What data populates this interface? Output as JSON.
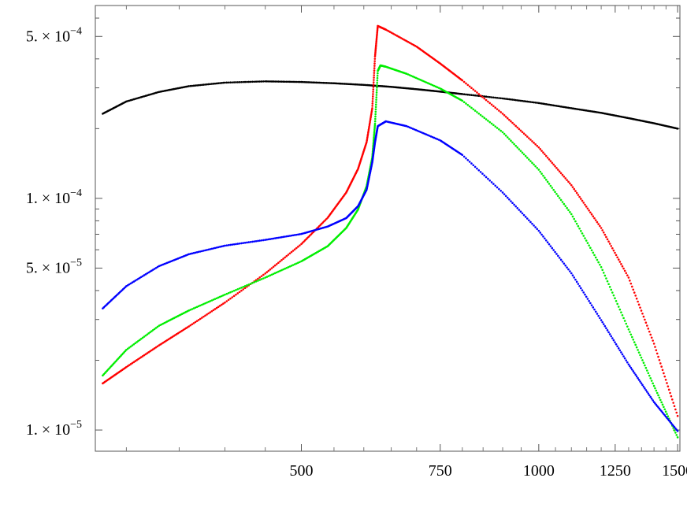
{
  "chart_data": {
    "type": "scatter",
    "title": "",
    "xlabel": "",
    "ylabel": "",
    "xscale": "log",
    "yscale": "log",
    "xlim": [
      274,
      1510
    ],
    "ylim": [
      8.1e-06,
      0.00068
    ],
    "grid": false,
    "x_ticks": [
      {
        "value": 500,
        "label": "500"
      },
      {
        "value": 750,
        "label": "750"
      },
      {
        "value": 1000,
        "label": "1000"
      },
      {
        "value": 1250,
        "label": "1250"
      },
      {
        "value": 1500,
        "label": "1500"
      }
    ],
    "y_ticks": [
      {
        "value": 1e-05,
        "mantissa": "1.",
        "base": "10",
        "exp": "−5"
      },
      {
        "value": 5e-05,
        "mantissa": "5.",
        "base": "10",
        "exp": "−5"
      },
      {
        "value": 0.0001,
        "mantissa": "1.",
        "base": "10",
        "exp": "−4"
      },
      {
        "value": 0.0005,
        "mantissa": "5.",
        "base": "10",
        "exp": "−4"
      }
    ],
    "series": [
      {
        "color": "#000000",
        "points": [
          [
            280,
            0.000232
          ],
          [
            300,
            0.000262
          ],
          [
            330,
            0.000288
          ],
          [
            360,
            0.000305
          ],
          [
            400,
            0.000316
          ],
          [
            450,
            0.00032
          ],
          [
            500,
            0.000318
          ],
          [
            550,
            0.000314
          ],
          [
            600,
            0.000309
          ],
          [
            650,
            0.000303
          ],
          [
            700,
            0.000296
          ],
          [
            750,
            0.000289
          ],
          [
            800,
            0.000282
          ],
          [
            900,
            0.00027
          ],
          [
            1000,
            0.000258
          ],
          [
            1100,
            0.000245
          ],
          [
            1200,
            0.000234
          ],
          [
            1300,
            0.000222
          ],
          [
            1400,
            0.000211
          ],
          [
            1500,
            0.0002
          ]
        ]
      },
      {
        "color": "#ff0000",
        "points": [
          [
            280,
            1.59e-05
          ],
          [
            300,
            1.87e-05
          ],
          [
            330,
            2.32e-05
          ],
          [
            360,
            2.8e-05
          ],
          [
            400,
            3.55e-05
          ],
          [
            450,
            4.74e-05
          ],
          [
            500,
            6.35e-05
          ],
          [
            540,
            8.25e-05
          ],
          [
            570,
            0.000106
          ],
          [
            590,
            0.000134
          ],
          [
            605,
            0.000175
          ],
          [
            615,
            0.000245
          ],
          [
            620,
            0.00041
          ],
          [
            625,
            0.000555
          ],
          [
            640,
            0.000535
          ],
          [
            700,
            0.000452
          ],
          [
            750,
            0.000382
          ],
          [
            800,
            0.000323
          ],
          [
            900,
            0.000232
          ],
          [
            1000,
            0.000166
          ],
          [
            1100,
            0.000114
          ],
          [
            1200,
            7.45e-05
          ],
          [
            1300,
            4.55e-05
          ],
          [
            1400,
            2.36e-05
          ],
          [
            1500,
            1.15e-05
          ]
        ]
      },
      {
        "color": "#00ee00",
        "points": [
          [
            280,
            1.72e-05
          ],
          [
            300,
            2.22e-05
          ],
          [
            330,
            2.82e-05
          ],
          [
            360,
            3.28e-05
          ],
          [
            400,
            3.84e-05
          ],
          [
            450,
            4.55e-05
          ],
          [
            500,
            5.35e-05
          ],
          [
            540,
            6.22e-05
          ],
          [
            570,
            7.45e-05
          ],
          [
            590,
            8.95e-05
          ],
          [
            605,
            0.000113
          ],
          [
            615,
            0.00015
          ],
          [
            620,
            0.00021
          ],
          [
            625,
            0.000355
          ],
          [
            630,
            0.000375
          ],
          [
            640,
            0.00037
          ],
          [
            680,
            0.000345
          ],
          [
            750,
            0.000298
          ],
          [
            800,
            0.000264
          ],
          [
            900,
            0.000193
          ],
          [
            1000,
            0.000133
          ],
          [
            1100,
            8.55e-05
          ],
          [
            1200,
            5.05e-05
          ],
          [
            1300,
            2.72e-05
          ],
          [
            1400,
            1.55e-05
          ],
          [
            1500,
            9.3e-06
          ]
        ]
      },
      {
        "color": "#0000ff",
        "points": [
          [
            280,
            3.35e-05
          ],
          [
            300,
            4.18e-05
          ],
          [
            330,
            5.1e-05
          ],
          [
            360,
            5.74e-05
          ],
          [
            400,
            6.25e-05
          ],
          [
            450,
            6.62e-05
          ],
          [
            500,
            7.02e-05
          ],
          [
            540,
            7.56e-05
          ],
          [
            570,
            8.22e-05
          ],
          [
            590,
            9.25e-05
          ],
          [
            605,
            0.000109
          ],
          [
            615,
            0.000143
          ],
          [
            620,
            0.000175
          ],
          [
            625,
            0.000205
          ],
          [
            640,
            0.000215
          ],
          [
            680,
            0.000205
          ],
          [
            750,
            0.000178
          ],
          [
            800,
            0.000154
          ],
          [
            900,
            0.000106
          ],
          [
            1000,
            7.25e-05
          ],
          [
            1100,
            4.75e-05
          ],
          [
            1200,
            2.98e-05
          ],
          [
            1300,
            1.92e-05
          ],
          [
            1400,
            1.32e-05
          ],
          [
            1500,
            9.9e-06
          ]
        ]
      }
    ]
  }
}
